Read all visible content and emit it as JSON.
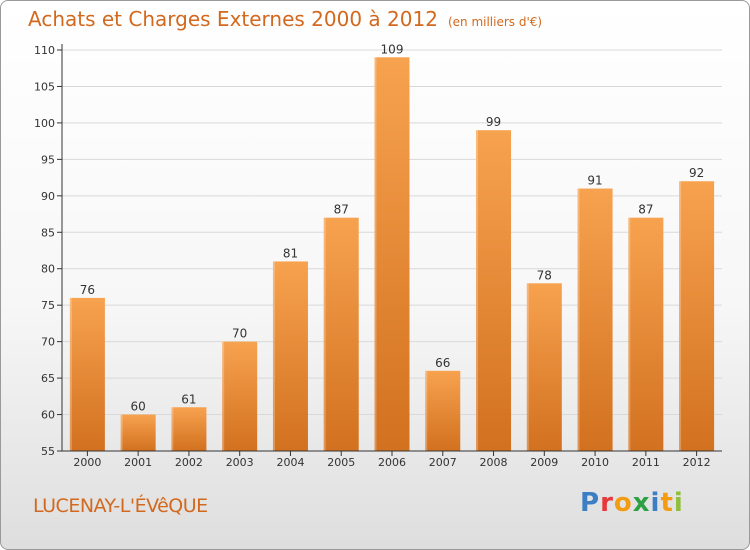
{
  "title": "Achats et Charges Externes 2000 à 2012",
  "unit_label": "(en milliers d'€)",
  "commune": "LUCENAY-L'ÉVêQUE",
  "logo": {
    "text": "Proxiti",
    "letters": [
      {
        "ch": "P",
        "color": "#3b7ec3"
      },
      {
        "ch": "r",
        "color": "#e8383d"
      },
      {
        "ch": "o",
        "color": "#f39c12"
      },
      {
        "ch": "x",
        "color": "#2ea043"
      },
      {
        "ch": "i",
        "color": "#3b7ec3"
      },
      {
        "ch": "t",
        "color": "#f39c12"
      },
      {
        "ch": "i",
        "color": "#8fbf3a"
      }
    ]
  },
  "colors": {
    "bar_top": "#f7a24f",
    "bar_bottom": "#d2711f",
    "axis": "#333333",
    "grid": "#d9d9d9",
    "text": "#333333"
  },
  "chart_data": {
    "type": "bar",
    "categories": [
      "2000",
      "2001",
      "2002",
      "2003",
      "2004",
      "2005",
      "2006",
      "2007",
      "2008",
      "2009",
      "2010",
      "2011",
      "2012"
    ],
    "values": [
      76,
      60,
      61,
      70,
      81,
      87,
      109,
      66,
      99,
      78,
      91,
      87,
      92
    ],
    "ylim": [
      55,
      110
    ],
    "yticks": [
      55,
      60,
      65,
      70,
      75,
      80,
      85,
      90,
      95,
      100,
      105,
      110
    ],
    "grid": true
  }
}
